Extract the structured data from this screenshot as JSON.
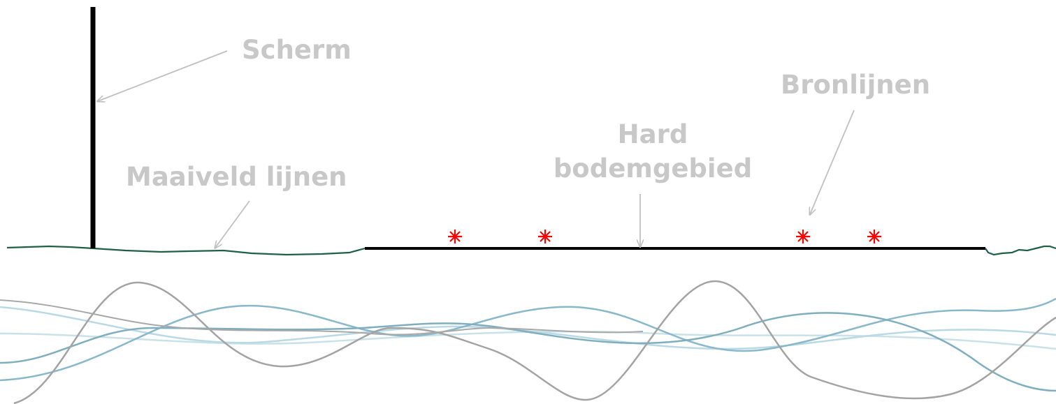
{
  "labels": {
    "screen": "Scherm",
    "ground_lines": "Maaiveld lijnen",
    "hard_ground_line1": "Hard",
    "hard_ground_line2": "bodemgebied",
    "source_lines": "Bronlijnen"
  },
  "source_marker": {
    "glyph": "✳",
    "count": 4
  },
  "colors": {
    "label": "#c8c8c8",
    "arrow": "#c0c0c0",
    "screen": "#000000",
    "ground_line": "#1f5f46",
    "hard_ground": "#000000",
    "source_marker": "#ff0000",
    "wave_grey": "#9a9a9a",
    "wave_blue_dark": "#7fb3c4",
    "wave_blue_light": "#b8d8e4"
  }
}
